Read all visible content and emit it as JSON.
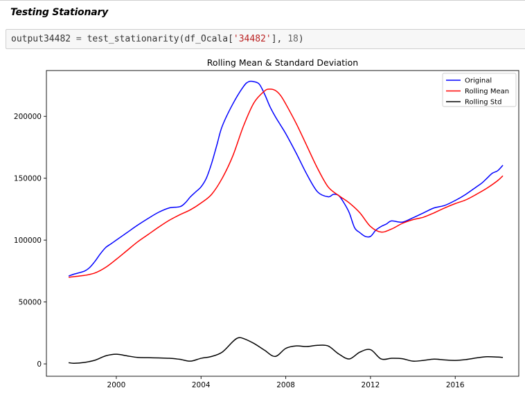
{
  "notebook": {
    "heading": "Testing Stationary",
    "code": {
      "var": "output34482",
      "assign": " = ",
      "func": "test_stationarity(df_Ocala[",
      "str": "'34482'",
      "sep": "], ",
      "num": "18",
      "close": ")"
    }
  },
  "chart_data": {
    "type": "line",
    "title": "Rolling Mean & Standard Deviation",
    "xlabel": "",
    "ylabel": "",
    "xlim": [
      1996.7,
      2019.0
    ],
    "ylim": [
      -10000,
      237000
    ],
    "xticks": [
      2000,
      2004,
      2008,
      2012,
      2016
    ],
    "yticks": [
      0,
      50000,
      100000,
      150000,
      200000
    ],
    "legend_position": "top-right",
    "grid": false,
    "series": [
      {
        "name": "Original",
        "color": "#0000ff",
        "x": [
          1997.75,
          1998.0,
          1998.5,
          1998.75,
          1999.0,
          1999.25,
          1999.5,
          1999.75,
          2000.0,
          2000.5,
          2001.0,
          2001.5,
          2002.0,
          2002.5,
          2003.0,
          2003.25,
          2003.5,
          2003.75,
          2004.0,
          2004.25,
          2004.5,
          2004.75,
          2005.0,
          2005.5,
          2006.0,
          2006.25,
          2006.5,
          2006.75,
          2007.0,
          2007.25,
          2007.5,
          2007.75,
          2008.0,
          2008.5,
          2009.0,
          2009.5,
          2010.0,
          2010.25,
          2010.5,
          2010.75,
          2011.0,
          2011.25,
          2011.5,
          2011.75,
          2012.0,
          2012.25,
          2012.5,
          2012.75,
          2013.0,
          2013.5,
          2014.0,
          2014.5,
          2015.0,
          2015.5,
          2016.0,
          2016.5,
          2017.0,
          2017.25,
          2017.5,
          2017.75,
          2018.0,
          2018.25
        ],
        "y": [
          71000,
          72500,
          75000,
          78000,
          83000,
          89000,
          94000,
          97000,
          100000,
          106000,
          112000,
          117500,
          122500,
          126000,
          127000,
          130000,
          135000,
          139000,
          143000,
          150000,
          162000,
          177000,
          192000,
          210000,
          224000,
          228000,
          228000,
          226000,
          218000,
          208000,
          200000,
          193000,
          186000,
          170000,
          153000,
          139000,
          135000,
          137000,
          136000,
          130000,
          122000,
          110000,
          106000,
          103000,
          103000,
          108000,
          111000,
          113000,
          115500,
          114500,
          118000,
          122000,
          126000,
          128000,
          132000,
          137000,
          143000,
          146000,
          150000,
          154000,
          156000,
          160500
        ]
      },
      {
        "name": "Rolling Mean",
        "color": "#ff0000",
        "x": [
          1997.75,
          1998.5,
          1999.0,
          1999.5,
          2000.0,
          2000.5,
          2001.0,
          2001.5,
          2002.0,
          2002.5,
          2003.0,
          2003.5,
          2004.0,
          2004.5,
          2005.0,
          2005.5,
          2006.0,
          2006.5,
          2007.0,
          2007.25,
          2007.5,
          2007.75,
          2008.0,
          2008.5,
          2009.0,
          2009.5,
          2010.0,
          2010.5,
          2011.0,
          2011.5,
          2012.0,
          2012.5,
          2013.0,
          2013.5,
          2014.0,
          2014.5,
          2015.0,
          2015.5,
          2016.0,
          2016.5,
          2017.0,
          2017.5,
          2018.0,
          2018.25
        ],
        "y": [
          70000,
          71500,
          73500,
          78000,
          84500,
          91500,
          98500,
          104500,
          110500,
          116000,
          120500,
          124500,
          130000,
          137000,
          150000,
          168000,
          192000,
          211000,
          220500,
          222000,
          221000,
          217000,
          210000,
          194000,
          176000,
          158000,
          143000,
          136000,
          130000,
          122000,
          111000,
          106500,
          109000,
          113500,
          116500,
          118500,
          122000,
          126000,
          129500,
          132500,
          137000,
          142000,
          148000,
          152000
        ],
        "y_unused_note": ""
      },
      {
        "name": "Rolling Std",
        "color": "#000000",
        "x": [
          1997.75,
          1998.0,
          1998.5,
          1999.0,
          1999.5,
          2000.0,
          2000.5,
          2001.0,
          2001.5,
          2002.0,
          2002.5,
          2003.0,
          2003.5,
          2004.0,
          2004.5,
          2005.0,
          2005.5,
          2005.75,
          2006.0,
          2006.5,
          2007.0,
          2007.5,
          2008.0,
          2008.5,
          2009.0,
          2009.5,
          2010.0,
          2010.5,
          2011.0,
          2011.5,
          2012.0,
          2012.5,
          2013.0,
          2013.5,
          2014.0,
          2014.5,
          2015.0,
          2015.5,
          2016.0,
          2016.5,
          2017.0,
          2017.5,
          2018.0,
          2018.25
        ],
        "y": [
          1000,
          500,
          1200,
          3000,
          6500,
          7800,
          6500,
          5200,
          5000,
          4800,
          4500,
          3700,
          2200,
          4500,
          6000,
          9500,
          18000,
          21000,
          20500,
          16500,
          11000,
          6000,
          12500,
          14500,
          14000,
          15000,
          14500,
          8000,
          4000,
          9500,
          11500,
          4000,
          4500,
          4200,
          2200,
          2800,
          3800,
          3200,
          2800,
          3500,
          4800,
          5800,
          5500,
          5200
        ]
      }
    ]
  }
}
